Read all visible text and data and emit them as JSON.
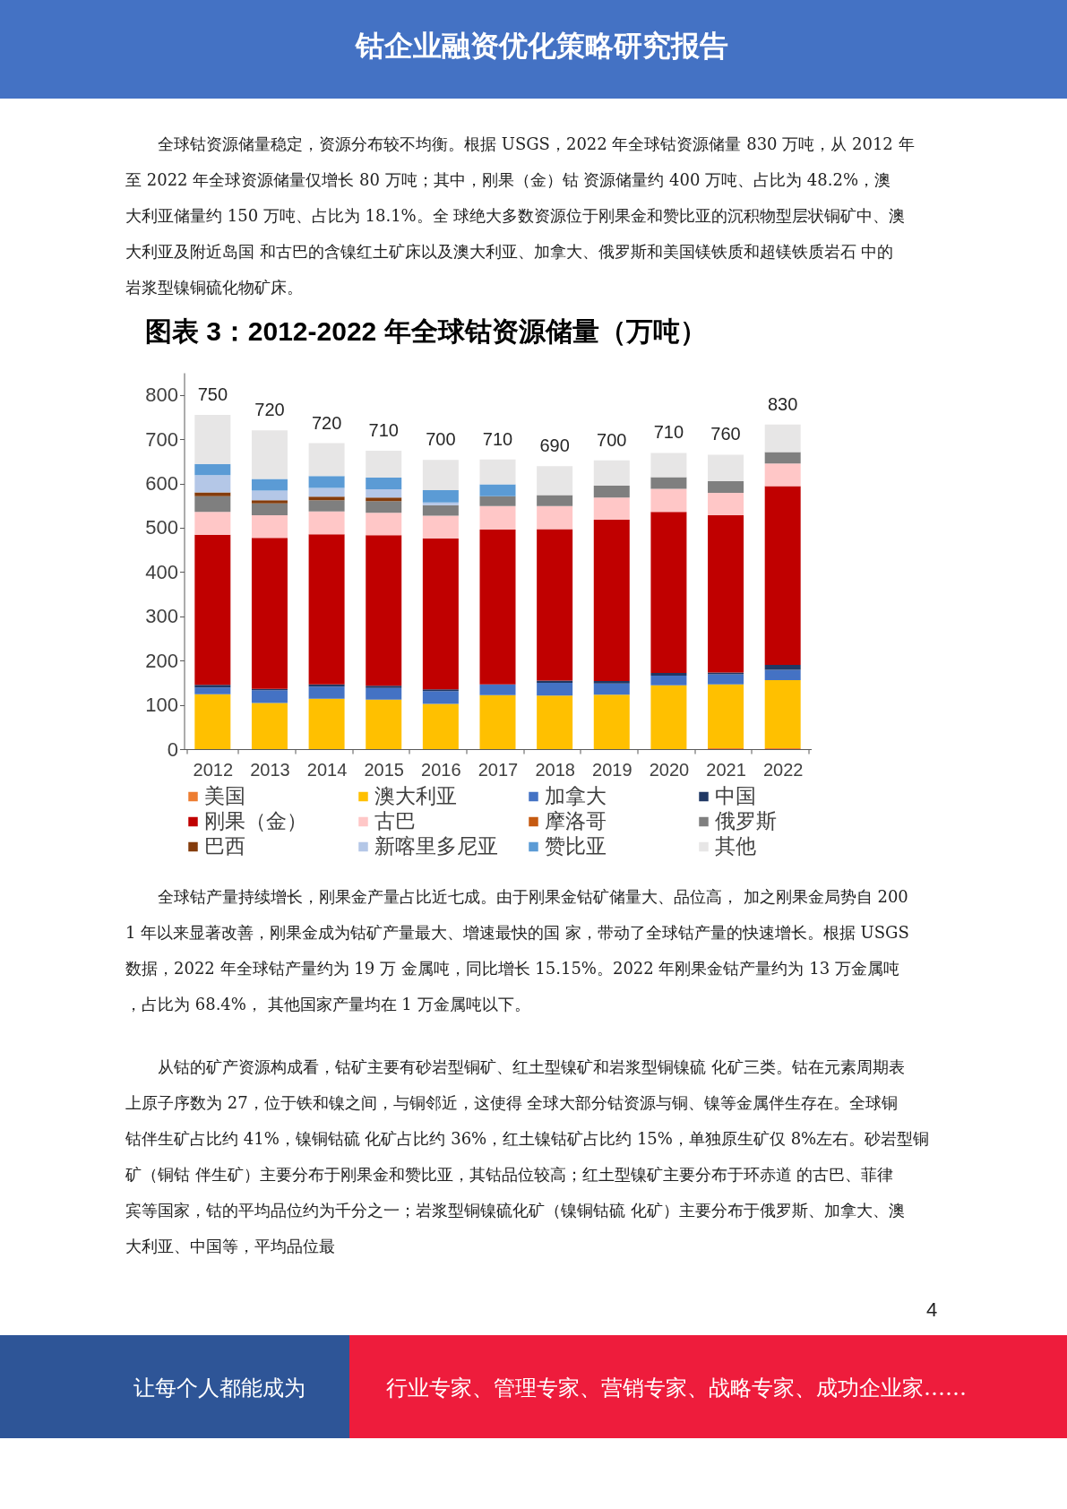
{
  "chart_data": {
    "type": "bar",
    "stacked": true,
    "title": "图表 3：2012-2022 年全球钴资源储量（万吨）",
    "categories": [
      "2012",
      "2013",
      "2014",
      "2015",
      "2016",
      "2017",
      "2018",
      "2019",
      "2020",
      "2021",
      "2022"
    ],
    "series": [
      {
        "name": "美国",
        "color": "#ed7d31",
        "values": [
          0,
          0,
          0,
          0,
          0,
          0,
          0,
          0,
          0,
          2,
          2
        ]
      },
      {
        "name": "澳大利亚",
        "color": "#ffc000",
        "values": [
          124,
          104,
          114,
          112,
          102,
          122,
          121,
          123,
          144,
          144,
          154
        ]
      },
      {
        "name": "加拿大",
        "color": "#4472c4",
        "values": [
          15,
          29,
          27,
          26,
          29,
          24,
          29,
          25,
          22,
          23,
          23
        ]
      },
      {
        "name": "中国",
        "color": "#203864",
        "values": [
          6,
          3,
          5,
          5,
          4,
          0,
          5,
          6,
          6,
          4,
          11
        ]
      },
      {
        "name": "刚果（金）",
        "color": "#c00000",
        "values": [
          339,
          341,
          339,
          340,
          341,
          350,
          342,
          364,
          364,
          355,
          404
        ]
      },
      {
        "name": "古巴",
        "color": "#ffc7c7",
        "values": [
          52,
          51,
          52,
          51,
          51,
          53,
          52,
          50,
          52,
          51,
          51
        ]
      },
      {
        "name": "摩洛哥",
        "color": "#c55a11",
        "values": [
          0,
          0,
          0,
          0,
          0,
          0,
          0,
          0,
          0,
          0,
          0
        ]
      },
      {
        "name": "俄罗斯",
        "color": "#7f7f7f",
        "values": [
          35,
          27,
          25,
          26,
          24,
          22,
          25,
          27,
          26,
          26,
          26
        ]
      },
      {
        "name": "巴西",
        "color": "#843c0c",
        "values": [
          9,
          7,
          8,
          8,
          0,
          0,
          0,
          0,
          0,
          0,
          0
        ]
      },
      {
        "name": "新喀里多尼亚",
        "color": "#b4c7e7",
        "values": [
          39,
          22,
          20,
          19,
          6,
          0,
          0,
          0,
          0,
          0,
          0
        ]
      },
      {
        "name": "赞比亚",
        "color": "#5b9bd5",
        "values": [
          25,
          26,
          27,
          26,
          28,
          27,
          0,
          0,
          0,
          0,
          0
        ]
      },
      {
        "name": "其他",
        "color": "#e7e6e6",
        "values": [
          111,
          110,
          74,
          61,
          68,
          56,
          65,
          57,
          55,
          60,
          62
        ]
      }
    ],
    "ylim": [
      0,
      850
    ],
    "yticks": [
      0,
      100,
      200,
      300,
      400,
      500,
      600,
      700,
      800
    ],
    "legend": "bottom",
    "grid": false,
    "annotations": [
      "钴企业融资优化策略研究报告",
      "全球钴资源储量稳定，资源分布较不均衡。根据 USGS，2022 年全球钴资源储量 830 万吨，从 2012 年至 2022 年全球资源储量仅增长 80 万吨；其中，刚果（金）钴 资源储量约 400 万吨、占比为 48.2%，澳大利亚储量约 150 万吨、占比为 18.1%。全 球绝大多数资源位于刚果金和赞比亚的沉积物型层状铜矿中、澳大利亚及附近岛国 和古巴的含镍红土矿床以及澳大利亚、加拿大、俄罗斯和美国镁铁质和超镁铁质岩石 中的岩浆型镍铜硫化物矿床。",
      "全球钴产量持续增长，刚果金产量占比近七成。由于刚果金钴矿储量大、品位高， 加之刚果金局势自 2001 年以来显著改善，刚果金成为钴矿产量最大、增速最快的国 家，带动了全球钴产量的快速增长。根据 USGS 数据，2022 年全球钴产量约为 19 万 金属吨，同比增长 15.15%。2022 年刚果金钴产量约为 13 万金属吨，占比为 68.4%， 其他国家产量均在 1 万金属吨以下。",
      "从钴的矿产资源构成看，钴矿主要有砂岩型铜矿、红土型镍矿和岩浆型铜镍硫 化矿三类。钴在元素周期表上原子序数为 27，位于铁和镍之间，与铜邻近，这使得 全球大部分钴资源与铜、镍等金属伴生存在。全球铜钴伴生矿占比约 41%，镍铜钴硫 化矿占比约 36%，红土镍钴矿占比约 15%，单独原生矿仅 8%左右。砂岩型铜矿（铜钴 伴生矿）主要分布于刚果金和赞比亚，其钴品位较高；红土型镍矿主要分布于环赤道 的古巴、菲律宾等国家，钴的平均品位约为千分之一；岩浆型铜镍硫化矿（镍铜钴硫 化矿）主要分布于俄罗斯、加拿大、澳大利亚、中国等，平均品位最",
      "4",
      "让每个人都能成为",
      "行业专家、管理专家、营销专家、战略专家、成功企业家……",
      "750",
      "720",
      "720",
      "710",
      "700",
      "710",
      "690",
      "700",
      "710",
      "760",
      "830"
    ]
  }
}
